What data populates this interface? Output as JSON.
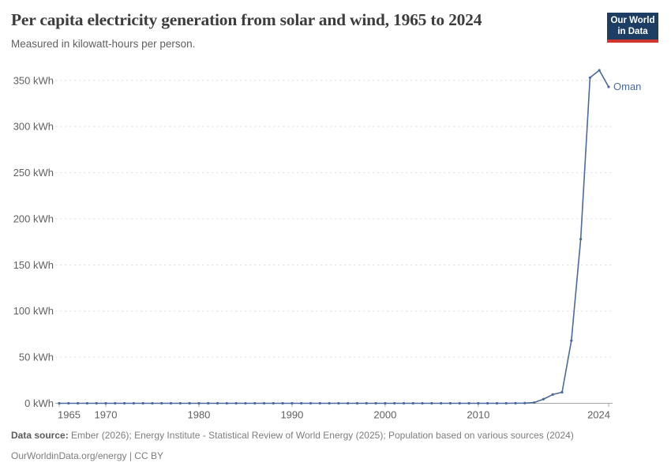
{
  "header": {
    "title": "Per capita electricity generation from solar and wind, 1965 to 2024",
    "subtitle": "Measured in kilowatt-hours per person."
  },
  "logo": {
    "line1": "Our World",
    "line2": "in Data",
    "bg_color": "#1d3d63",
    "accent_color": "#d0352f"
  },
  "chart_data": {
    "type": "line",
    "title": "Per capita electricity generation from solar and wind, 1965 to 2024",
    "subtitle": "Measured in kilowatt-hours per person.",
    "xlabel": "",
    "ylabel": "",
    "unit": "kWh",
    "xlim": [
      1965,
      2024
    ],
    "ylim": [
      0,
      350
    ],
    "grid": "dashed-horizontal",
    "legend_position": "end-of-line-label",
    "colors": {
      "gridline": "#e0e0e0",
      "axis_line": "#a8a8a8",
      "axis_text": "#616161"
    },
    "y_ticks": [
      {
        "value": 0,
        "label": "0 kWh"
      },
      {
        "value": 50,
        "label": "50 kWh"
      },
      {
        "value": 100,
        "label": "100 kWh"
      },
      {
        "value": 150,
        "label": "150 kWh"
      },
      {
        "value": 200,
        "label": "200 kWh"
      },
      {
        "value": 250,
        "label": "250 kWh"
      },
      {
        "value": 300,
        "label": "300 kWh"
      },
      {
        "value": 350,
        "label": "350 kWh"
      }
    ],
    "x_ticks": [
      {
        "year": 1965,
        "label": "1965"
      },
      {
        "year": 1970,
        "label": "1970"
      },
      {
        "year": 1980,
        "label": "1980"
      },
      {
        "year": 1990,
        "label": "1990"
      },
      {
        "year": 2000,
        "label": "2000"
      },
      {
        "year": 2010,
        "label": "2010"
      },
      {
        "year": 2024,
        "label": "2024"
      }
    ],
    "series": [
      {
        "name": "Oman",
        "color": "#4c6a9c",
        "years": [
          1965,
          1966,
          1967,
          1968,
          1969,
          1970,
          1971,
          1972,
          1973,
          1974,
          1975,
          1976,
          1977,
          1978,
          1979,
          1980,
          1981,
          1982,
          1983,
          1984,
          1985,
          1986,
          1987,
          1988,
          1989,
          1990,
          1991,
          1992,
          1993,
          1994,
          1995,
          1996,
          1997,
          1998,
          1999,
          2000,
          2001,
          2002,
          2003,
          2004,
          2005,
          2006,
          2007,
          2008,
          2009,
          2010,
          2011,
          2012,
          2013,
          2014,
          2015,
          2016,
          2017,
          2018,
          2019,
          2020,
          2021,
          2022,
          2023,
          2024
        ],
        "values": [
          0,
          0,
          0,
          0,
          0,
          0,
          0,
          0,
          0,
          0,
          0,
          0,
          0,
          0,
          0,
          0,
          0,
          0,
          0,
          0,
          0,
          0,
          0,
          0,
          0,
          0,
          0,
          0,
          0,
          0,
          0,
          0,
          0,
          0,
          0,
          0,
          0,
          0,
          0,
          0,
          0,
          0,
          0,
          0,
          0,
          0,
          0,
          0,
          0,
          0.1,
          0.2,
          0.8,
          4.5,
          9.5,
          12,
          68,
          178,
          353,
          361,
          343
        ]
      }
    ]
  },
  "footer": {
    "source_label": "Data source:",
    "source_text": "Ember (2026); Energy Institute - Statistical Review of World Energy (2025); Population based on various sources (2024)",
    "link": "OurWorldinData.org/energy",
    "license": " | CC BY"
  }
}
